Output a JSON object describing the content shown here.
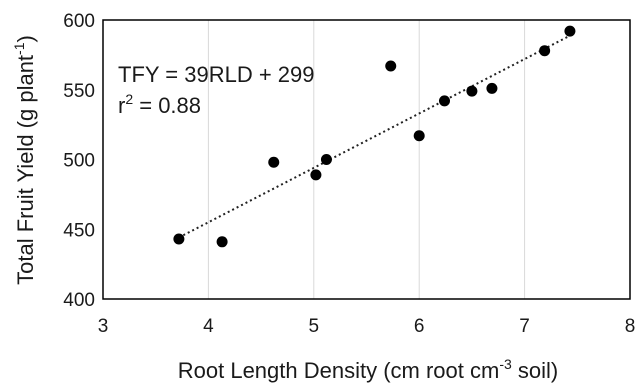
{
  "chart_data": {
    "type": "scatter",
    "xlabel": {
      "pre": "Root Length Density (cm root cm",
      "sup": "-3",
      "post": " soil)"
    },
    "ylabel": {
      "pre": "Total Fruit Yield (g plant",
      "sup": "-1",
      "post": ")"
    },
    "xlim": [
      3,
      8
    ],
    "ylim": [
      400,
      600
    ],
    "xticks": [
      3,
      4,
      5,
      6,
      7,
      8
    ],
    "yticks": [
      400,
      450,
      500,
      550,
      600
    ],
    "grid": {
      "vertical": true,
      "horizontal": false
    },
    "marker_color": "#000000",
    "points": [
      {
        "x": 3.72,
        "y": 443
      },
      {
        "x": 4.13,
        "y": 441
      },
      {
        "x": 4.62,
        "y": 498
      },
      {
        "x": 5.02,
        "y": 489
      },
      {
        "x": 5.12,
        "y": 500
      },
      {
        "x": 5.73,
        "y": 567
      },
      {
        "x": 6.0,
        "y": 517
      },
      {
        "x": 6.24,
        "y": 542
      },
      {
        "x": 6.5,
        "y": 549
      },
      {
        "x": 6.69,
        "y": 551
      },
      {
        "x": 7.19,
        "y": 578
      },
      {
        "x": 7.43,
        "y": 592
      }
    ],
    "trendline": {
      "slope": 39,
      "intercept": 299,
      "x_range": [
        3.72,
        7.43
      ],
      "style": "dotted"
    },
    "annotation": {
      "equation": "TFY = 39RLD + 299",
      "r2_pre": "r",
      "r2_sup": "2",
      "r2_post": " = 0.88"
    }
  }
}
